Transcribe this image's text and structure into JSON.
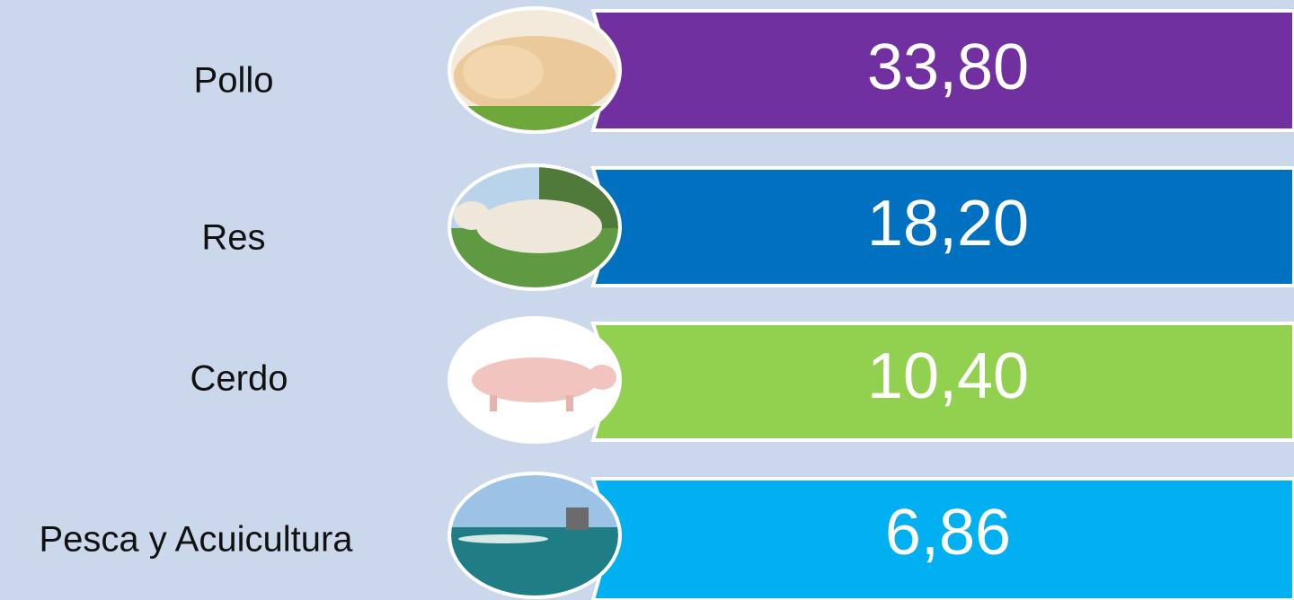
{
  "rows": [
    {
      "label": "Pollo",
      "value": "33,80"
    },
    {
      "label": "Res",
      "value": "18,20"
    },
    {
      "label": "Cerdo",
      "value": "10,40"
    },
    {
      "label": "Pesca y Acuicultura",
      "value": "6,86"
    }
  ]
}
